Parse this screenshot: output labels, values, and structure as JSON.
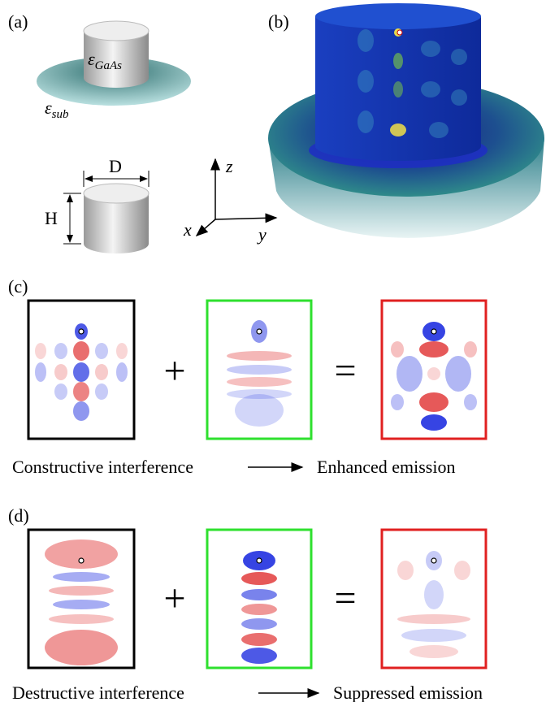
{
  "panel_a": {
    "label": "(a)",
    "core": {
      "symbol": "ε",
      "subscript": "GaAs"
    },
    "substrate": {
      "symbol": "ε",
      "subscript": "sub"
    },
    "diameter": "D",
    "height": "H",
    "axes": {
      "z": "z",
      "x": "x",
      "y": "y"
    }
  },
  "panel_b": {
    "label": "(b)"
  },
  "panel_c": {
    "label": "(c)",
    "plus": "+",
    "equals": "=",
    "left_caption": "Constructive interference",
    "right_caption": "Enhanced emission"
  },
  "panel_d": {
    "label": "(d)",
    "plus": "+",
    "equals": "=",
    "left_caption": "Destructive interference",
    "right_caption": "Suppressed emission"
  }
}
